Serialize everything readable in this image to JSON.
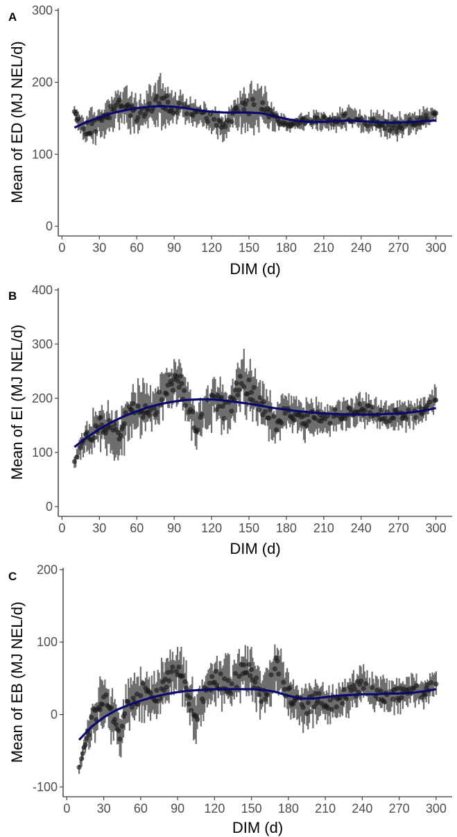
{
  "chart_data": [
    {
      "type": "scatter",
      "panel": "A",
      "ylabel": "Mean of ED (MJ NEL/d)",
      "xlabel": "DIM (d)",
      "xlim": [
        10,
        300
      ],
      "ylim": [
        0,
        300
      ],
      "xticks": [
        0,
        30,
        60,
        90,
        120,
        150,
        180,
        210,
        240,
        270,
        300
      ],
      "yticks": [
        0,
        100,
        200,
        300
      ],
      "grid": false,
      "error_bars": true,
      "point_color": "#1a1a1a",
      "errorbar_color": "#6e6e6e",
      "fit_color": "#0a0a6e",
      "fit": {
        "x": [
          10,
          20,
          30,
          40,
          50,
          60,
          70,
          80,
          90,
          100,
          110,
          120,
          130,
          140,
          150,
          160,
          170,
          180,
          190,
          200,
          210,
          220,
          230,
          240,
          250,
          260,
          270,
          280,
          290,
          300
        ],
        "y": [
          137,
          145,
          151,
          157,
          161,
          164,
          166,
          167,
          166,
          164,
          161,
          159,
          158,
          158,
          158,
          157,
          153,
          149,
          146,
          145,
          145,
          146,
          147,
          146,
          145,
          144,
          144,
          145,
          146,
          147
        ]
      },
      "anchors": {
        "x": [
          10,
          18,
          25,
          32,
          40,
          48,
          55,
          62,
          70,
          76,
          80,
          84,
          88,
          95,
          102,
          110,
          118,
          125,
          130,
          137,
          143,
          150,
          155,
          160,
          165,
          170,
          176,
          183,
          190,
          197,
          205,
          212,
          220,
          228,
          236,
          244,
          252,
          260,
          268,
          275,
          282,
          290,
          300
        ],
        "y": [
          157,
          135,
          138,
          145,
          160,
          168,
          160,
          152,
          168,
          172,
          175,
          170,
          162,
          168,
          160,
          156,
          150,
          148,
          132,
          155,
          162,
          165,
          172,
          168,
          158,
          150,
          145,
          142,
          145,
          148,
          146,
          148,
          145,
          152,
          150,
          142,
          145,
          140,
          138,
          142,
          144,
          148,
          154
        ],
        "spread": [
          8,
          18,
          20,
          20,
          20,
          22,
          24,
          22,
          22,
          28,
          30,
          25,
          20,
          15,
          15,
          15,
          15,
          20,
          15,
          18,
          22,
          28,
          30,
          28,
          20,
          15,
          10,
          8,
          10,
          10,
          12,
          12,
          12,
          14,
          12,
          12,
          12,
          14,
          16,
          14,
          14,
          12,
          10
        ]
      }
    },
    {
      "type": "scatter",
      "panel": "B",
      "ylabel": "Mean of EI (MJ NEL/d)",
      "xlabel": "DIM (d)",
      "xlim": [
        10,
        300
      ],
      "ylim": [
        0,
        400
      ],
      "xticks": [
        0,
        30,
        60,
        90,
        120,
        150,
        180,
        210,
        240,
        270,
        300
      ],
      "yticks": [
        0,
        100,
        200,
        300,
        400
      ],
      "grid": false,
      "error_bars": true,
      "point_color": "#1a1a1a",
      "errorbar_color": "#6e6e6e",
      "fit_color": "#0a0a6e",
      "fit": {
        "x": [
          10,
          20,
          30,
          40,
          50,
          60,
          70,
          80,
          90,
          100,
          110,
          120,
          130,
          140,
          150,
          160,
          170,
          180,
          190,
          200,
          210,
          220,
          230,
          240,
          250,
          260,
          270,
          280,
          290,
          300
        ],
        "y": [
          110,
          128,
          143,
          156,
          167,
          176,
          184,
          190,
          194,
          197,
          198,
          198,
          196,
          193,
          190,
          186,
          182,
          179,
          176,
          174,
          172,
          171,
          170,
          170,
          170,
          171,
          172,
          174,
          177,
          182
        ]
      },
      "anchors": {
        "x": [
          10,
          15,
          22,
          30,
          38,
          45,
          52,
          60,
          68,
          75,
          82,
          88,
          95,
          100,
          108,
          115,
          122,
          130,
          137,
          143,
          150,
          157,
          165,
          172,
          180,
          188,
          195,
          205,
          212,
          220,
          230,
          240,
          250,
          260,
          270,
          280,
          290,
          300
        ],
        "y": [
          80,
          115,
          130,
          150,
          145,
          130,
          165,
          185,
          180,
          175,
          220,
          230,
          225,
          190,
          150,
          175,
          200,
          180,
          190,
          230,
          220,
          200,
          170,
          150,
          175,
          170,
          160,
          165,
          158,
          170,
          172,
          180,
          175,
          165,
          170,
          172,
          175,
          200
        ],
        "spread": [
          10,
          20,
          30,
          35,
          40,
          40,
          40,
          40,
          38,
          38,
          40,
          38,
          36,
          36,
          35,
          35,
          40,
          40,
          40,
          42,
          45,
          40,
          35,
          30,
          30,
          28,
          28,
          28,
          28,
          25,
          25,
          25,
          22,
          22,
          22,
          22,
          20,
          20
        ]
      }
    },
    {
      "type": "scatter",
      "panel": "C",
      "ylabel": "Mean of EB (MJ NEL/d)",
      "xlabel": "DIM (d)",
      "xlim": [
        10,
        300
      ],
      "ylim": [
        -100,
        200
      ],
      "xticks": [
        0,
        30,
        60,
        90,
        120,
        150,
        180,
        210,
        240,
        270,
        300
      ],
      "yticks": [
        -100,
        0,
        100,
        200
      ],
      "grid": false,
      "error_bars": true,
      "point_color": "#1a1a1a",
      "errorbar_color": "#6e6e6e",
      "fit_color": "#0a0a6e",
      "fit": {
        "x": [
          10,
          20,
          30,
          40,
          50,
          60,
          70,
          80,
          90,
          100,
          110,
          120,
          130,
          140,
          150,
          160,
          170,
          180,
          190,
          200,
          210,
          220,
          230,
          240,
          250,
          260,
          270,
          280,
          290,
          300
        ],
        "y": [
          -35,
          -17,
          -4,
          6,
          13,
          19,
          24,
          28,
          31,
          33,
          34,
          35,
          35,
          35,
          35,
          34,
          31,
          26,
          22,
          22,
          24,
          26,
          27,
          28,
          28,
          29,
          29,
          30,
          32,
          35
        ]
      },
      "anchors": {
        "x": [
          10,
          14,
          20,
          26,
          32,
          38,
          43,
          48,
          55,
          62,
          70,
          78,
          85,
          90,
          96,
          100,
          105,
          112,
          120,
          128,
          135,
          142,
          150,
          158,
          165,
          170,
          178,
          186,
          195,
          205,
          212,
          220,
          230,
          240,
          250,
          260,
          270,
          280,
          290,
          300
        ],
        "y": [
          -75,
          -45,
          -10,
          10,
          20,
          -5,
          -30,
          10,
          20,
          30,
          20,
          40,
          60,
          65,
          45,
          20,
          -5,
          30,
          50,
          45,
          40,
          60,
          55,
          30,
          40,
          75,
          35,
          15,
          10,
          25,
          10,
          20,
          30,
          40,
          30,
          25,
          28,
          35,
          30,
          45
        ],
        "spread": [
          6,
          12,
          25,
          30,
          30,
          30,
          28,
          28,
          30,
          30,
          30,
          28,
          25,
          25,
          28,
          30,
          30,
          28,
          28,
          28,
          28,
          30,
          30,
          30,
          30,
          30,
          28,
          28,
          25,
          25,
          22,
          22,
          22,
          22,
          20,
          20,
          20,
          18,
          18,
          16
        ]
      }
    }
  ]
}
